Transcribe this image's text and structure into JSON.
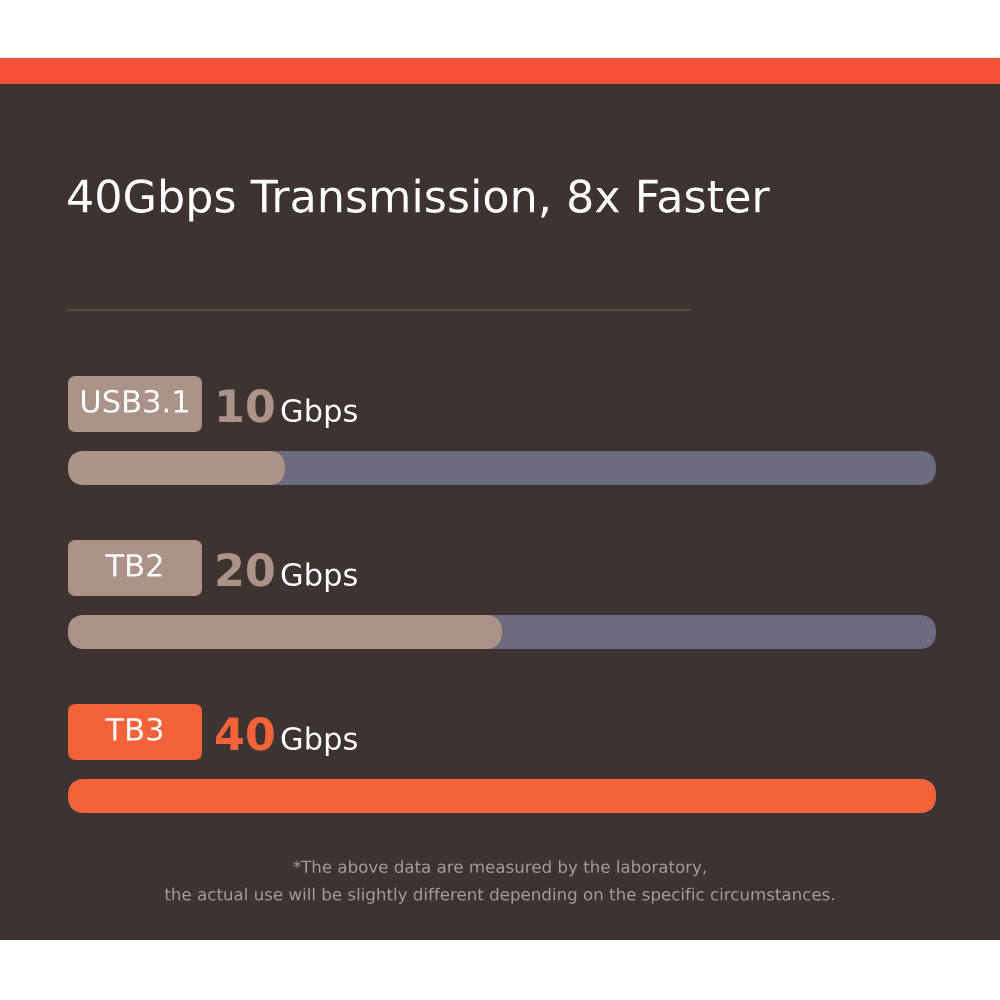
{
  "chart_data": {
    "type": "bar",
    "orientation": "horizontal",
    "title": "40Gbps Transmission, 8x Faster",
    "categories": [
      "USB3.1",
      "TB2",
      "TB3"
    ],
    "values": [
      10,
      20,
      40
    ],
    "colors": [
      "#ab938a",
      "#ab938a",
      "#f4623a"
    ],
    "value_labels": [
      "10Gbps",
      "20Gbps",
      "40Gbps"
    ],
    "xlim": [
      0,
      40
    ],
    "tick_labels": "y",
    "annotations": [
      "*The above data are measured by the laboratory,\nthe actual use will be slightly different depending on the specific circumstances."
    ]
  }
}
